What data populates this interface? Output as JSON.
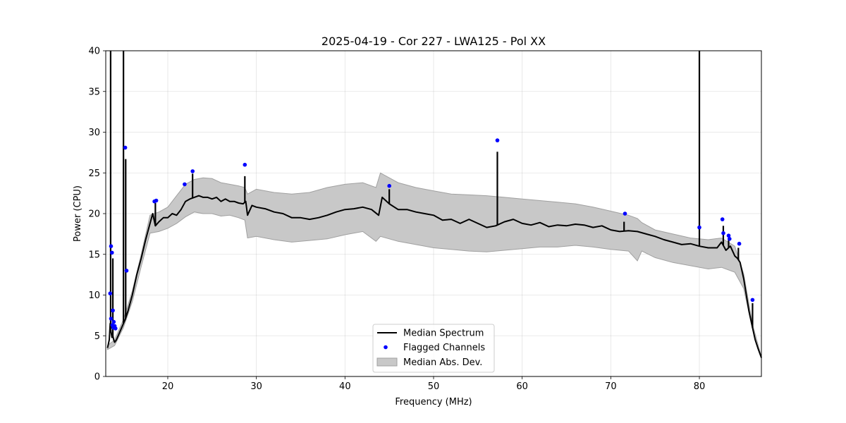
{
  "chart_data": {
    "type": "line",
    "title": "2025-04-19 - Cor 227 - LWA125 - Pol XX",
    "xlabel": "Frequency (MHz)",
    "ylabel": "Power (CPU)",
    "xlim": [
      13,
      87
    ],
    "ylim": [
      0,
      40
    ],
    "grid": true,
    "xticks": [
      20,
      30,
      40,
      50,
      60,
      70,
      80
    ],
    "yticks": [
      0,
      5,
      10,
      15,
      20,
      25,
      30,
      35,
      40
    ],
    "legend": {
      "position": "bottom-center",
      "entries": [
        {
          "label": "Median Spectrum",
          "kind": "line",
          "color": "#000000"
        },
        {
          "label": "Flagged Channels",
          "kind": "marker",
          "color": "#0000ff"
        },
        {
          "label": "Median Abs. Dev.",
          "kind": "patch",
          "color": "#c8c8c8"
        }
      ]
    },
    "series": [
      {
        "name": "Median Spectrum",
        "color": "#000000",
        "x": [
          13.2,
          13.4,
          13.5,
          13.6,
          13.7,
          13.8,
          13.9,
          14.0,
          14.2,
          14.4,
          14.6,
          14.8,
          15.0,
          15.2,
          15.5,
          16.0,
          16.5,
          17.0,
          17.5,
          18.0,
          18.3,
          18.6,
          19.0,
          19.5,
          20.0,
          20.5,
          21.0,
          21.5,
          22.0,
          22.5,
          23.0,
          23.5,
          24.0,
          24.5,
          25.0,
          25.5,
          26.0,
          26.5,
          27.0,
          27.5,
          28.0,
          28.5,
          28.8,
          29.0,
          29.5,
          30.0,
          31.0,
          32.0,
          33.0,
          34.0,
          35.0,
          36.0,
          37.0,
          38.0,
          39.0,
          40.0,
          41.0,
          42.0,
          43.0,
          43.8,
          44.2,
          45.0,
          46.0,
          47.0,
          48.0,
          49.0,
          50.0,
          51.0,
          52.0,
          53.0,
          54.0,
          55.0,
          56.0,
          57.0,
          58.0,
          59.0,
          60.0,
          61.0,
          62.0,
          63.0,
          64.0,
          65.0,
          66.0,
          67.0,
          68.0,
          69.0,
          70.0,
          71.0,
          72.0,
          73.0,
          74.0,
          75.0,
          76.0,
          77.0,
          78.0,
          79.0,
          80.0,
          81.0,
          82.0,
          82.5,
          83.0,
          83.5,
          84.0,
          84.3,
          84.6,
          85.0,
          85.3,
          85.6,
          86.0,
          86.3,
          86.6,
          87.0
        ],
        "y": [
          3.5,
          4.5,
          6.5,
          5.5,
          4.8,
          5.0,
          4.5,
          4.2,
          4.5,
          5.0,
          5.5,
          6.0,
          6.5,
          7.0,
          8.0,
          10.0,
          12.5,
          14.5,
          16.8,
          18.8,
          20.0,
          18.5,
          19.0,
          19.5,
          19.5,
          20.0,
          19.8,
          20.5,
          21.5,
          21.8,
          22.0,
          22.2,
          22.0,
          22.0,
          21.8,
          22.0,
          21.5,
          21.8,
          21.5,
          21.5,
          21.3,
          21.2,
          21.5,
          19.8,
          21.0,
          20.8,
          20.6,
          20.2,
          20.0,
          19.5,
          19.5,
          19.3,
          19.5,
          19.8,
          20.2,
          20.5,
          20.6,
          20.8,
          20.5,
          19.8,
          22.0,
          21.2,
          20.5,
          20.5,
          20.2,
          20.0,
          19.8,
          19.2,
          19.3,
          18.8,
          19.3,
          18.8,
          18.3,
          18.5,
          19.0,
          19.3,
          18.8,
          18.6,
          18.9,
          18.4,
          18.6,
          18.5,
          18.7,
          18.6,
          18.3,
          18.5,
          18.0,
          17.8,
          17.9,
          17.8,
          17.5,
          17.2,
          16.8,
          16.5,
          16.2,
          16.3,
          16.0,
          15.8,
          15.8,
          16.5,
          15.5,
          16.0,
          14.8,
          14.5,
          14.0,
          12.0,
          10.0,
          8.0,
          6.0,
          4.5,
          3.5,
          2.3
        ]
      },
      {
        "name": "Median Abs. Dev.",
        "color": "#c8c8c8",
        "x": [
          13.2,
          14.0,
          15.0,
          16.0,
          17.0,
          18.0,
          19.0,
          20.0,
          21.0,
          22.0,
          23.0,
          24.0,
          25.0,
          26.0,
          27.0,
          28.0,
          28.7,
          29.0,
          30.0,
          32.0,
          34.0,
          36.0,
          38.0,
          40.0,
          42.0,
          43.5,
          44.0,
          46.0,
          48.0,
          50.0,
          52.0,
          54.0,
          56.0,
          58.0,
          60.0,
          62.0,
          64.0,
          66.0,
          68.0,
          70.0,
          72.0,
          73.0,
          73.5,
          75.0,
          77.0,
          79.0,
          81.0,
          82.5,
          84.0,
          85.0,
          86.0,
          87.0
        ],
        "lower": [
          3.3,
          3.8,
          6.0,
          9.2,
          13.5,
          17.6,
          17.8,
          18.2,
          18.8,
          19.6,
          20.2,
          20.0,
          20.0,
          19.7,
          19.8,
          19.5,
          19.2,
          17.0,
          17.2,
          16.8,
          16.5,
          16.7,
          16.9,
          17.4,
          17.8,
          16.6,
          17.2,
          16.6,
          16.2,
          15.8,
          15.6,
          15.4,
          15.3,
          15.5,
          15.7,
          15.9,
          15.9,
          16.1,
          15.9,
          15.6,
          15.4,
          14.2,
          15.4,
          14.6,
          14.0,
          13.6,
          13.2,
          13.4,
          12.8,
          10.8,
          5.8,
          2.2
        ],
        "upper": [
          3.8,
          4.5,
          7.0,
          10.5,
          15.0,
          19.8,
          20.2,
          20.8,
          22.2,
          23.6,
          24.2,
          24.4,
          24.3,
          23.8,
          23.6,
          23.4,
          23.2,
          22.4,
          23.0,
          22.6,
          22.4,
          22.6,
          23.2,
          23.6,
          23.8,
          23.2,
          25.0,
          23.8,
          23.2,
          22.8,
          22.4,
          22.3,
          22.2,
          22.0,
          21.8,
          21.6,
          21.4,
          21.2,
          20.8,
          20.3,
          19.8,
          19.4,
          18.9,
          18.0,
          17.5,
          17.0,
          16.8,
          17.0,
          16.0,
          12.6,
          6.4,
          2.4
        ]
      },
      {
        "name": "Spikes",
        "kind": "spike",
        "color": "#000000",
        "items": [
          {
            "x": 13.55,
            "y": 40.0
          },
          {
            "x": 13.8,
            "y": 14.5
          },
          {
            "x": 15.0,
            "y": 40.0
          },
          {
            "x": 15.25,
            "y": 26.7
          },
          {
            "x": 18.6,
            "y": 21.3
          },
          {
            "x": 22.8,
            "y": 24.9
          },
          {
            "x": 28.7,
            "y": 24.6
          },
          {
            "x": 45.0,
            "y": 23.0
          },
          {
            "x": 57.2,
            "y": 27.6
          },
          {
            "x": 71.5,
            "y": 19.0
          },
          {
            "x": 80.0,
            "y": 40.0
          },
          {
            "x": 82.7,
            "y": 18.5
          },
          {
            "x": 83.3,
            "y": 17.0
          },
          {
            "x": 84.4,
            "y": 15.8
          },
          {
            "x": 86.0,
            "y": 9.0
          }
        ]
      },
      {
        "name": "Flagged Channels",
        "color": "#0000ff",
        "x": [
          13.5,
          13.6,
          13.7,
          13.8,
          13.9,
          14.0,
          14.1,
          13.6,
          13.75,
          13.85,
          15.2,
          15.35,
          18.5,
          18.7,
          21.9,
          22.8,
          28.7,
          45.0,
          57.2,
          71.6,
          80.0,
          82.6,
          82.7,
          83.3,
          83.4,
          84.5,
          86.0
        ],
        "y": [
          10.2,
          16.0,
          15.2,
          8.1,
          6.7,
          6.2,
          5.9,
          7.1,
          6.3,
          6.0,
          28.1,
          13.0,
          21.5,
          21.6,
          23.6,
          25.2,
          26.0,
          23.4,
          29.0,
          20.0,
          18.3,
          19.3,
          17.6,
          17.3,
          16.9,
          16.3,
          9.4
        ]
      }
    ]
  }
}
